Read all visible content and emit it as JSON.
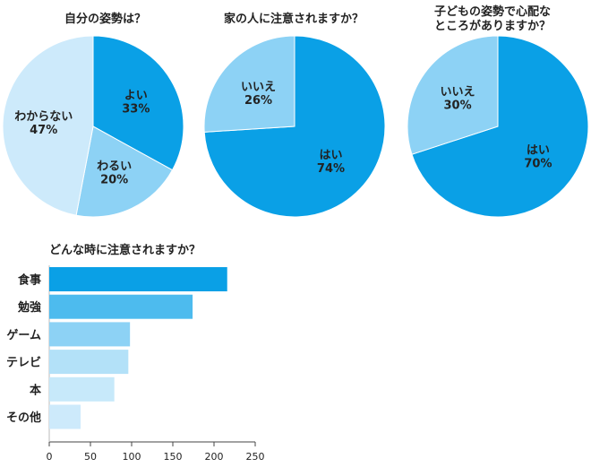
{
  "chart_data": [
    {
      "type": "pie",
      "title": "自分の姿勢は？",
      "slices": [
        {
          "label": "よい",
          "percent_label": "33%",
          "value": 33,
          "color": "#0aa0e6"
        },
        {
          "label": "わるい",
          "percent_label": "20%",
          "value": 20,
          "color": "#8dd2f5"
        },
        {
          "label": "わからない",
          "percent_label": "47%",
          "value": 47,
          "color": "#cdeafb"
        }
      ]
    },
    {
      "type": "pie",
      "title": "家の人に注意されますか？",
      "slices": [
        {
          "label": "はい",
          "percent_label": "74%",
          "value": 74,
          "color": "#0aa0e6"
        },
        {
          "label": "いいえ",
          "percent_label": "26%",
          "value": 26,
          "color": "#8dd2f5"
        }
      ]
    },
    {
      "type": "pie",
      "title": [
        "子どもの姿勢で心配な",
        "ところがありますか？"
      ],
      "slices": [
        {
          "label": "はい",
          "percent_label": "70%",
          "value": 70,
          "color": "#0aa0e6"
        },
        {
          "label": "いいえ",
          "percent_label": "30%",
          "value": 30,
          "color": "#8dd2f5"
        }
      ]
    },
    {
      "type": "bar",
      "orientation": "horizontal",
      "title": "どんな時に注意されますか？",
      "categories": [
        "食事",
        "勉強",
        "ゲーム",
        "テレビ",
        "本",
        "その他"
      ],
      "values": [
        216,
        174,
        98,
        96,
        79,
        38
      ],
      "colors": [
        "#0aa0e6",
        "#4dbbee",
        "#8dd2f5",
        "#b3e1f8",
        "#c7e9fa",
        "#cdeafb"
      ],
      "xlim": [
        0,
        250
      ],
      "xticks": [
        0,
        50,
        100,
        150,
        200,
        250
      ]
    }
  ]
}
